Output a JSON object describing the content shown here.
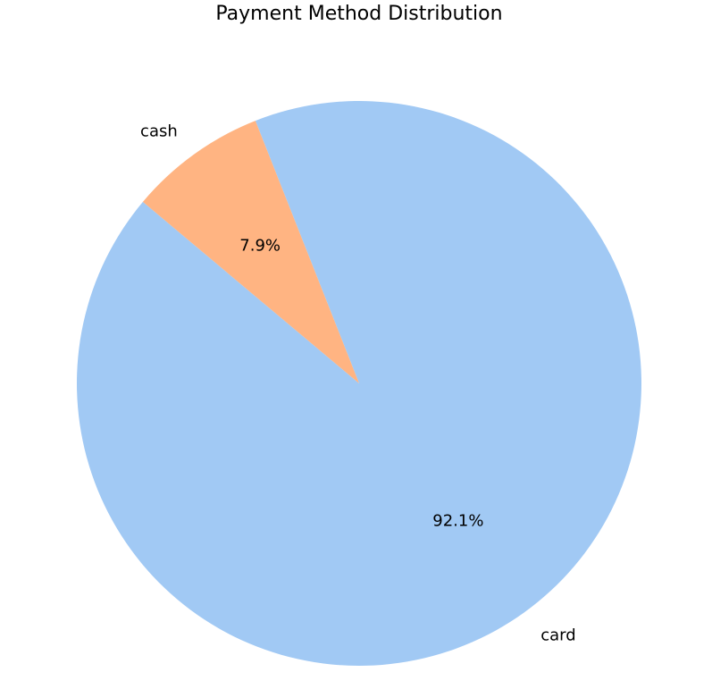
{
  "chart_data": {
    "type": "pie",
    "title": "Payment Method Distribution",
    "slices": [
      {
        "label": "card",
        "percent": 92.1,
        "percent_label": "92.1%",
        "color": "#a1c9f4"
      },
      {
        "label": "cash",
        "percent": 7.9,
        "percent_label": "7.9%",
        "color": "#ffb482"
      }
    ],
    "start_angle_deg": 140,
    "direction": "counterclockwise"
  }
}
